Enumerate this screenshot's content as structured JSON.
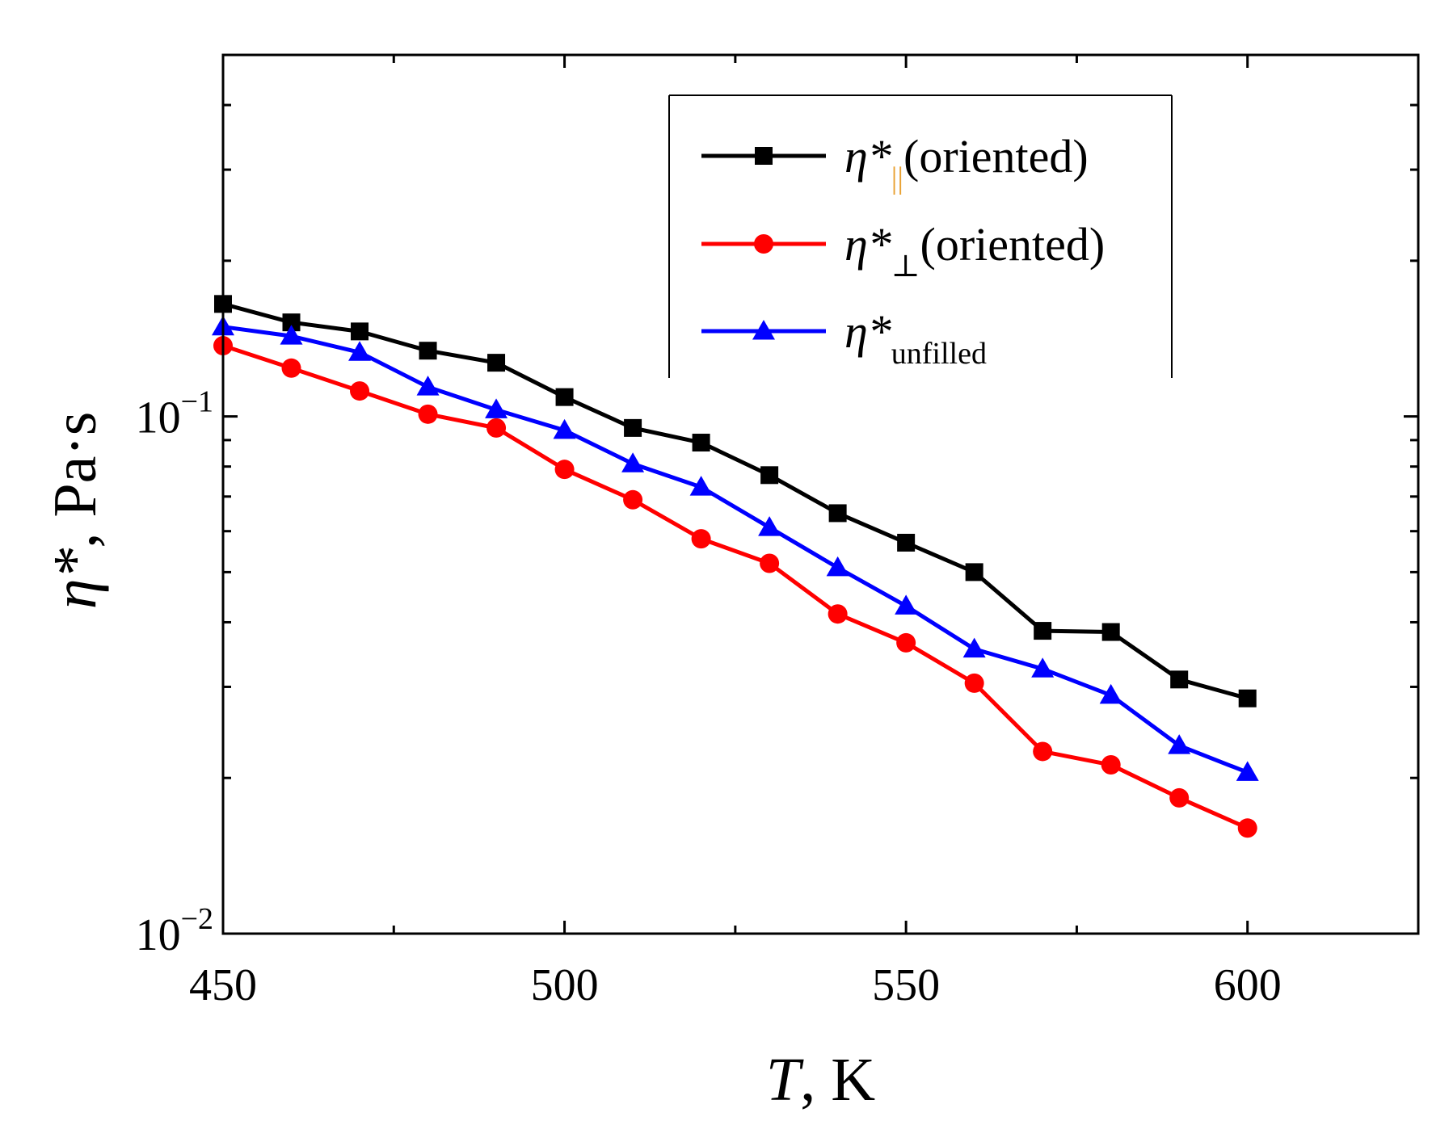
{
  "chart_data": {
    "type": "line",
    "xlabel": {
      "italic": "T",
      "rest": ", K"
    },
    "ylabel": {
      "italic": "η*",
      "rest": ", Pa·s"
    },
    "xlim": [
      450,
      625
    ],
    "ylim": [
      0.01,
      0.5
    ],
    "yscale": "log",
    "xticks": [
      {
        "value": 450,
        "label": "450"
      },
      {
        "value": 500,
        "label": "500"
      },
      {
        "value": 550,
        "label": "550"
      },
      {
        "value": 600,
        "label": "600"
      }
    ],
    "yticks": [
      {
        "value": 0.1,
        "base": "10",
        "exp": "−1"
      },
      {
        "value": 0.01,
        "base": "10",
        "exp": "−2"
      }
    ],
    "x": [
      450,
      460,
      470,
      480,
      490,
      500,
      510,
      520,
      530,
      540,
      550,
      560,
      570,
      580,
      590,
      600
    ],
    "series": [
      {
        "name": "η*||(oriented)",
        "legend_main": "η*",
        "legend_sub": "||",
        "legend_rest": "(oriented)",
        "sub_color": "#e8a030",
        "color": "#000000",
        "marker": "square",
        "values": [
          0.165,
          0.152,
          0.146,
          0.134,
          0.127,
          0.109,
          0.095,
          0.089,
          0.077,
          0.065,
          0.057,
          0.05,
          0.0385,
          0.0383,
          0.031,
          0.0285
        ]
      },
      {
        "name": "η*⊥(oriented)",
        "legend_main": "η*",
        "legend_sub": "⊥",
        "legend_rest": "(oriented)",
        "sub_color": "#000000",
        "color": "#ff0000",
        "marker": "circle",
        "values": [
          0.137,
          0.124,
          0.112,
          0.101,
          0.095,
          0.079,
          0.069,
          0.058,
          0.052,
          0.0415,
          0.0365,
          0.0305,
          0.0225,
          0.0212,
          0.0183,
          0.016
        ]
      },
      {
        "name": "η*unfilled",
        "legend_main": "η*",
        "legend_sub": "unfilled",
        "legend_rest": "",
        "sub_color": "#000000",
        "color": "#0000ff",
        "marker": "triangle",
        "values": [
          0.149,
          0.143,
          0.133,
          0.114,
          0.103,
          0.094,
          0.081,
          0.073,
          0.061,
          0.051,
          0.043,
          0.0355,
          0.0325,
          0.0289,
          0.0231,
          0.0205
        ]
      }
    ],
    "legend_position": "top-right"
  }
}
